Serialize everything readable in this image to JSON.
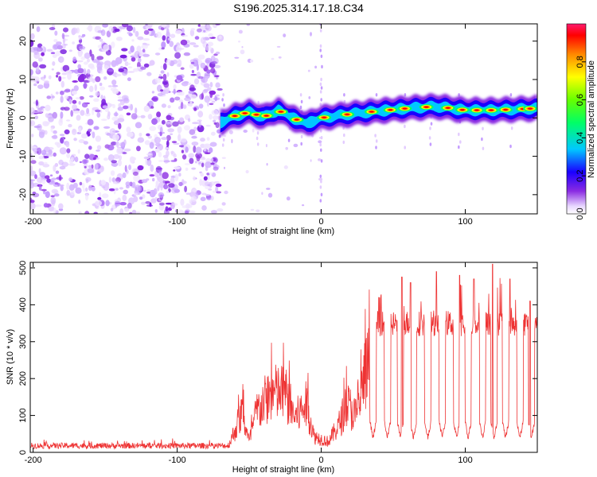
{
  "title": "S196.2025.314.17.18.C34",
  "chart_data": [
    {
      "type": "heatmap",
      "xlabel": "Height of straight line (km)",
      "ylabel": "Frequency (Hz)",
      "xlim": [
        -202,
        150
      ],
      "ylim": [
        -25,
        24.5
      ],
      "xticks": [
        "-200",
        "-100",
        "0",
        "100"
      ],
      "yticks": [
        "20",
        "10",
        "0",
        "-10",
        "-20"
      ],
      "colorbar": {
        "label": "Normalized spectral amplitude",
        "range": [
          0,
          1
        ],
        "ticks": [
          "0.0",
          "0.2",
          "0.4",
          "0.6",
          "0.8"
        ]
      },
      "noise_region_x": [
        -202,
        -70
      ],
      "gap_x": [
        -70,
        -0.5
      ],
      "ridge": [
        {
          "x": -70,
          "y": -1.2
        },
        {
          "x": -60,
          "y": 0.5
        },
        {
          "x": -50,
          "y": 1.5
        },
        {
          "x": -40,
          "y": 0.2
        },
        {
          "x": -30,
          "y": 2.0
        },
        {
          "x": -20,
          "y": 0.0
        },
        {
          "x": -10,
          "y": -1.5
        },
        {
          "x": 0,
          "y": 0.0
        },
        {
          "x": 20,
          "y": 1.0
        },
        {
          "x": 40,
          "y": 1.8
        },
        {
          "x": 60,
          "y": 2.5
        },
        {
          "x": 80,
          "y": 3.0
        },
        {
          "x": 100,
          "y": 2.0
        },
        {
          "x": 120,
          "y": 2.0
        },
        {
          "x": 150,
          "y": 2.5
        }
      ],
      "hot_spots_x": [
        -60,
        -53,
        -45,
        -38,
        -28,
        -17,
        2,
        18,
        35,
        48,
        58,
        73,
        88,
        98,
        108,
        118,
        128,
        140,
        145
      ]
    },
    {
      "type": "line",
      "xlabel": "Height of straight line (km)",
      "ylabel": "SNR (10 * v/v)",
      "xlim": [
        -202,
        150
      ],
      "ylim": [
        0,
        515
      ],
      "xticks": [
        "-200",
        "-100",
        "0",
        "100"
      ],
      "yticks": [
        "500",
        "400",
        "300",
        "200",
        "100",
        "0"
      ],
      "line_color": "#ee3333",
      "series": [
        {
          "envelope": [
            {
              "x": -202,
              "y": 20
            },
            {
              "x": -65,
              "y": 20
            },
            {
              "x": -60,
              "y": 80
            },
            {
              "x": -55,
              "y": 150
            },
            {
              "x": -50,
              "y": 40
            },
            {
              "x": -45,
              "y": 150
            },
            {
              "x": -35,
              "y": 220
            },
            {
              "x": -25,
              "y": 220
            },
            {
              "x": -18,
              "y": 130
            },
            {
              "x": -10,
              "y": 180
            },
            {
              "x": -5,
              "y": 60
            },
            {
              "x": 5,
              "y": 40
            },
            {
              "x": 12,
              "y": 100
            },
            {
              "x": 18,
              "y": 180
            },
            {
              "x": 25,
              "y": 130
            },
            {
              "x": 30,
              "y": 280
            },
            {
              "x": 35,
              "y": 350
            },
            {
              "x": 150,
              "y": 350
            }
          ],
          "dips_x": [
            36,
            46,
            55,
            64,
            74,
            84,
            94,
            102,
            112,
            120,
            128,
            138,
            146
          ],
          "dip_level": 40,
          "peaks": [
            {
              "x": 40,
              "y": 420
            },
            {
              "x": 56,
              "y": 475
            },
            {
              "x": 62,
              "y": 460
            },
            {
              "x": 80,
              "y": 490
            },
            {
              "x": 96,
              "y": 480
            },
            {
              "x": 106,
              "y": 470
            },
            {
              "x": 119,
              "y": 510
            },
            {
              "x": 131,
              "y": 470
            },
            {
              "x": 145,
              "y": 410
            }
          ]
        }
      ]
    }
  ]
}
